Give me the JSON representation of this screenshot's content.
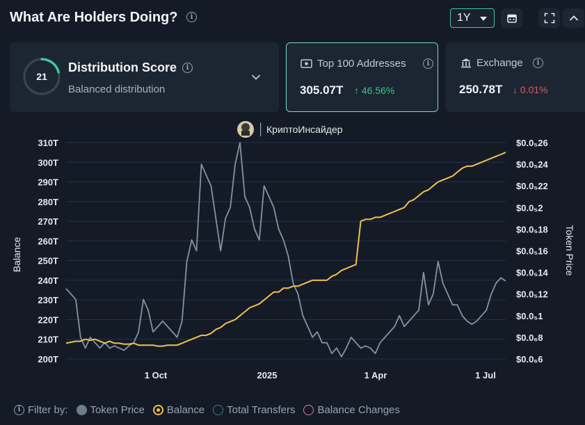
{
  "header": {
    "title": "What Are Holders Doing?",
    "timeframe": "1Y"
  },
  "cards": {
    "distribution": {
      "score": "21",
      "score_fraction": 0.21,
      "title": "Distribution Score",
      "subtitle": "Balanced distribution"
    },
    "top100": {
      "label": "Top 100 Addresses",
      "value": "305.07T",
      "change": "↑ 46.56%"
    },
    "exchange": {
      "label": "Exchange",
      "value": "250.78T",
      "change": "↓ 0.01%"
    }
  },
  "watermark": "КриптоИнсайдер",
  "colors": {
    "balance": "#f2c14e",
    "token_price": "#8593a3",
    "accent": "#3ec99b",
    "up": "#35c785",
    "down": "#e05b66",
    "transfers": "#2e7d8c",
    "balance_changes": "#d47aa0"
  },
  "chart_data": {
    "type": "line",
    "x_ticks": [
      "1 Oct",
      "2025",
      "1 Apr",
      "1 Jul"
    ],
    "y_left": {
      "label": "Balance",
      "ticks": [
        "200T",
        "210T",
        "220T",
        "230T",
        "240T",
        "250T",
        "260T",
        "270T",
        "280T",
        "290T",
        "300T",
        "310T"
      ],
      "range": [
        200,
        310
      ]
    },
    "y_right": {
      "label": "Token Price",
      "ticks": [
        "$0.0₆6",
        "$0.0₆8",
        "$0.0₅1",
        "$0.0₅12",
        "$0.0₅14",
        "$0.0₅16",
        "$0.0₅18",
        "$0.0₅2",
        "$0.0₅22",
        "$0.0₅24",
        "$0.0₅26"
      ],
      "range": [
        0.6,
        2.6
      ]
    },
    "series": [
      {
        "name": "Balance",
        "values": [
          208,
          208.5,
          209,
          209,
          210,
          209.5,
          210,
          209,
          208,
          209,
          208,
          208,
          207.5,
          207.5,
          208,
          207,
          207,
          207,
          207,
          206.5,
          206.5,
          207,
          207,
          207,
          208,
          209,
          210,
          211,
          212,
          212,
          213,
          215,
          216,
          218,
          219,
          220,
          222,
          224,
          226,
          227,
          228,
          230,
          232,
          234,
          234,
          236,
          236,
          237,
          237,
          238,
          239,
          240,
          240,
          240,
          240,
          242,
          243,
          245,
          246,
          247,
          248,
          270,
          271,
          271,
          272,
          272,
          273,
          274,
          275,
          276,
          277,
          280,
          281,
          283,
          285,
          286,
          288,
          290,
          291,
          292,
          293,
          295,
          297,
          298,
          298,
          299,
          300,
          301,
          302,
          303,
          304,
          305
        ]
      },
      {
        "name": "Token Price",
        "values": [
          1.25,
          1.2,
          1.15,
          0.8,
          0.7,
          0.8,
          0.75,
          0.7,
          0.75,
          0.7,
          0.72,
          0.7,
          0.68,
          0.72,
          0.75,
          0.85,
          1.15,
          1.05,
          0.85,
          0.9,
          0.95,
          0.9,
          0.85,
          0.8,
          0.95,
          1.5,
          1.7,
          1.6,
          2.4,
          2.3,
          2.2,
          1.9,
          1.6,
          1.9,
          2.0,
          2.4,
          2.6,
          2.1,
          2.0,
          1.8,
          1.7,
          2.2,
          2.1,
          2.0,
          1.8,
          1.7,
          1.55,
          1.3,
          1.2,
          1.0,
          0.9,
          0.8,
          0.85,
          0.75,
          0.75,
          0.65,
          0.7,
          0.62,
          0.7,
          0.8,
          0.75,
          0.7,
          0.72,
          0.7,
          0.65,
          0.75,
          0.8,
          0.85,
          0.9,
          1.0,
          0.9,
          0.95,
          1.0,
          1.05,
          1.4,
          1.1,
          1.2,
          1.5,
          1.3,
          1.2,
          1.1,
          1.1,
          1.0,
          0.95,
          0.92,
          0.95,
          1.0,
          1.05,
          1.2,
          1.3,
          1.35,
          1.32
        ]
      }
    ],
    "legend": {
      "filter_label": "Filter by:",
      "items": [
        "Token Price",
        "Balance",
        "Total Transfers",
        "Balance Changes"
      ],
      "placement": "bottom-left"
    },
    "grid": true
  }
}
